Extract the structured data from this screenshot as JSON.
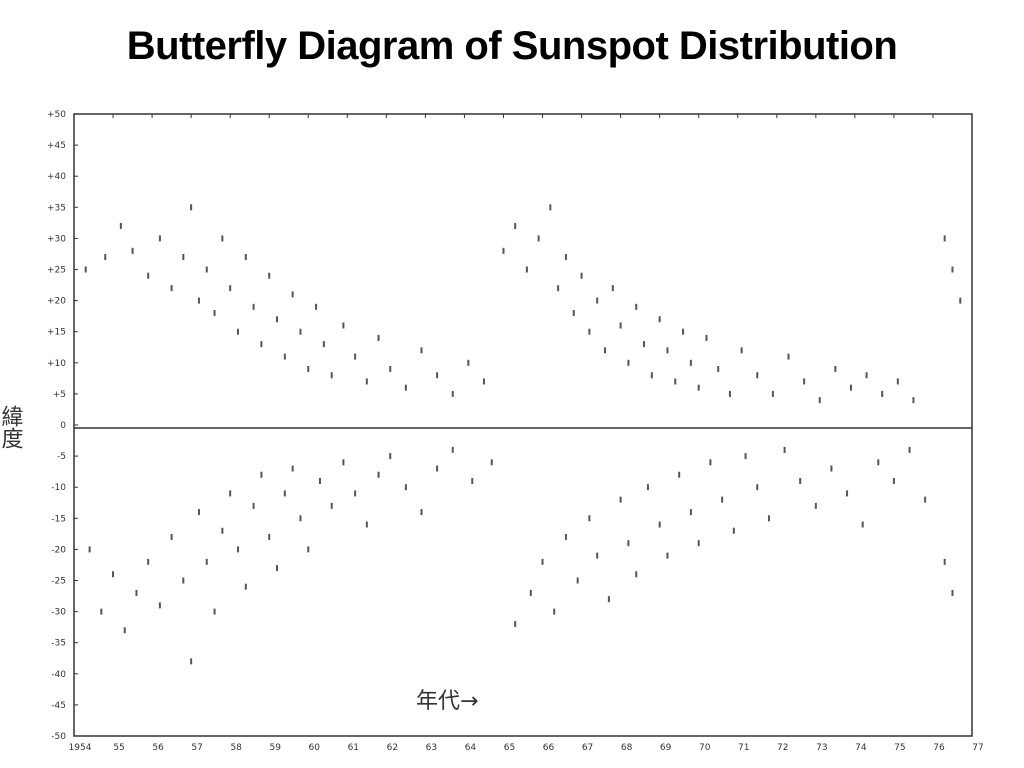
{
  "slide": {
    "title": "Butterfly Diagram of Sunspot Distribution"
  },
  "chart_data": {
    "type": "scatter",
    "title": "Butterfly Diagram of Sunspot Distribution",
    "ylabel": "緯度",
    "xlabel": "年代→",
    "xlim": [
      1954,
      1977
    ],
    "ylim": [
      -50,
      50
    ],
    "x_ticks": [
      "1954",
      "55",
      "56",
      "57",
      "58",
      "59",
      "60",
      "61",
      "62",
      "63",
      "64",
      "65",
      "66",
      "67",
      "68",
      "69",
      "70",
      "71",
      "72",
      "73",
      "74",
      "75",
      "76",
      "77"
    ],
    "y_ticks": [
      "+50",
      "+45",
      "+40",
      "+35",
      "+30",
      "+25",
      "+20",
      "+15",
      "+10",
      "+5",
      "0",
      "-5",
      "-10",
      "-15",
      "-20",
      "-25",
      "-30",
      "-35",
      "-40",
      "-45",
      "-50"
    ],
    "grid": false,
    "colors": {
      "points": "#555555",
      "axis": "#333333"
    },
    "series": [
      {
        "hemisphere": "north",
        "points": [
          [
            1954.3,
            25
          ],
          [
            1954.8,
            27
          ],
          [
            1955.2,
            32
          ],
          [
            1955.5,
            28
          ],
          [
            1955.9,
            24
          ],
          [
            1956.2,
            30
          ],
          [
            1956.5,
            22
          ],
          [
            1956.8,
            27
          ],
          [
            1957.0,
            35
          ],
          [
            1957.2,
            20
          ],
          [
            1957.4,
            25
          ],
          [
            1957.6,
            18
          ],
          [
            1957.8,
            30
          ],
          [
            1958.0,
            22
          ],
          [
            1958.2,
            15
          ],
          [
            1958.4,
            27
          ],
          [
            1958.6,
            19
          ],
          [
            1958.8,
            13
          ],
          [
            1959.0,
            24
          ],
          [
            1959.2,
            17
          ],
          [
            1959.4,
            11
          ],
          [
            1959.6,
            21
          ],
          [
            1959.8,
            15
          ],
          [
            1960.0,
            9
          ],
          [
            1960.2,
            19
          ],
          [
            1960.4,
            13
          ],
          [
            1960.6,
            8
          ],
          [
            1960.9,
            16
          ],
          [
            1961.2,
            11
          ],
          [
            1961.5,
            7
          ],
          [
            1961.8,
            14
          ],
          [
            1962.1,
            9
          ],
          [
            1962.5,
            6
          ],
          [
            1962.9,
            12
          ],
          [
            1963.3,
            8
          ],
          [
            1963.7,
            5
          ],
          [
            1964.1,
            10
          ],
          [
            1964.5,
            7
          ],
          [
            1965.0,
            28
          ],
          [
            1965.3,
            32
          ],
          [
            1965.6,
            25
          ],
          [
            1965.9,
            30
          ],
          [
            1966.2,
            35
          ],
          [
            1966.4,
            22
          ],
          [
            1966.6,
            27
          ],
          [
            1966.8,
            18
          ],
          [
            1967.0,
            24
          ],
          [
            1967.2,
            15
          ],
          [
            1967.4,
            20
          ],
          [
            1967.6,
            12
          ],
          [
            1967.8,
            22
          ],
          [
            1968.0,
            16
          ],
          [
            1968.2,
            10
          ],
          [
            1968.4,
            19
          ],
          [
            1968.6,
            13
          ],
          [
            1968.8,
            8
          ],
          [
            1969.0,
            17
          ],
          [
            1969.2,
            12
          ],
          [
            1969.4,
            7
          ],
          [
            1969.6,
            15
          ],
          [
            1969.8,
            10
          ],
          [
            1970.0,
            6
          ],
          [
            1970.2,
            14
          ],
          [
            1970.5,
            9
          ],
          [
            1970.8,
            5
          ],
          [
            1971.1,
            12
          ],
          [
            1971.5,
            8
          ],
          [
            1971.9,
            5
          ],
          [
            1972.3,
            11
          ],
          [
            1972.7,
            7
          ],
          [
            1973.1,
            4
          ],
          [
            1973.5,
            9
          ],
          [
            1973.9,
            6
          ],
          [
            1974.3,
            8
          ],
          [
            1974.7,
            5
          ],
          [
            1975.1,
            7
          ],
          [
            1975.5,
            4
          ],
          [
            1976.3,
            30
          ],
          [
            1976.5,
            25
          ],
          [
            1976.7,
            20
          ]
        ]
      },
      {
        "hemisphere": "south",
        "points": [
          [
            1954.4,
            -20
          ],
          [
            1954.7,
            -30
          ],
          [
            1955.0,
            -24
          ],
          [
            1955.3,
            -33
          ],
          [
            1955.6,
            -27
          ],
          [
            1955.9,
            -22
          ],
          [
            1956.2,
            -29
          ],
          [
            1956.5,
            -18
          ],
          [
            1956.8,
            -25
          ],
          [
            1957.0,
            -38
          ],
          [
            1957.2,
            -14
          ],
          [
            1957.4,
            -22
          ],
          [
            1957.6,
            -30
          ],
          [
            1957.8,
            -17
          ],
          [
            1958.0,
            -11
          ],
          [
            1958.2,
            -20
          ],
          [
            1958.4,
            -26
          ],
          [
            1958.6,
            -13
          ],
          [
            1958.8,
            -8
          ],
          [
            1959.0,
            -18
          ],
          [
            1959.2,
            -23
          ],
          [
            1959.4,
            -11
          ],
          [
            1959.6,
            -7
          ],
          [
            1959.8,
            -15
          ],
          [
            1960.0,
            -20
          ],
          [
            1960.3,
            -9
          ],
          [
            1960.6,
            -13
          ],
          [
            1960.9,
            -6
          ],
          [
            1961.2,
            -11
          ],
          [
            1961.5,
            -16
          ],
          [
            1961.8,
            -8
          ],
          [
            1962.1,
            -5
          ],
          [
            1962.5,
            -10
          ],
          [
            1962.9,
            -14
          ],
          [
            1963.3,
            -7
          ],
          [
            1963.7,
            -4
          ],
          [
            1964.2,
            -9
          ],
          [
            1964.7,
            -6
          ],
          [
            1965.3,
            -32
          ],
          [
            1965.7,
            -27
          ],
          [
            1966.0,
            -22
          ],
          [
            1966.3,
            -30
          ],
          [
            1966.6,
            -18
          ],
          [
            1966.9,
            -25
          ],
          [
            1967.2,
            -15
          ],
          [
            1967.4,
            -21
          ],
          [
            1967.7,
            -28
          ],
          [
            1968.0,
            -12
          ],
          [
            1968.2,
            -19
          ],
          [
            1968.4,
            -24
          ],
          [
            1968.7,
            -10
          ],
          [
            1969.0,
            -16
          ],
          [
            1969.2,
            -21
          ],
          [
            1969.5,
            -8
          ],
          [
            1969.8,
            -14
          ],
          [
            1970.0,
            -19
          ],
          [
            1970.3,
            -6
          ],
          [
            1970.6,
            -12
          ],
          [
            1970.9,
            -17
          ],
          [
            1971.2,
            -5
          ],
          [
            1971.5,
            -10
          ],
          [
            1971.8,
            -15
          ],
          [
            1972.2,
            -4
          ],
          [
            1972.6,
            -9
          ],
          [
            1973.0,
            -13
          ],
          [
            1973.4,
            -7
          ],
          [
            1973.8,
            -11
          ],
          [
            1974.2,
            -16
          ],
          [
            1974.6,
            -6
          ],
          [
            1975.0,
            -9
          ],
          [
            1975.4,
            -4
          ],
          [
            1975.8,
            -12
          ],
          [
            1976.3,
            -22
          ],
          [
            1976.5,
            -27
          ]
        ]
      }
    ]
  }
}
